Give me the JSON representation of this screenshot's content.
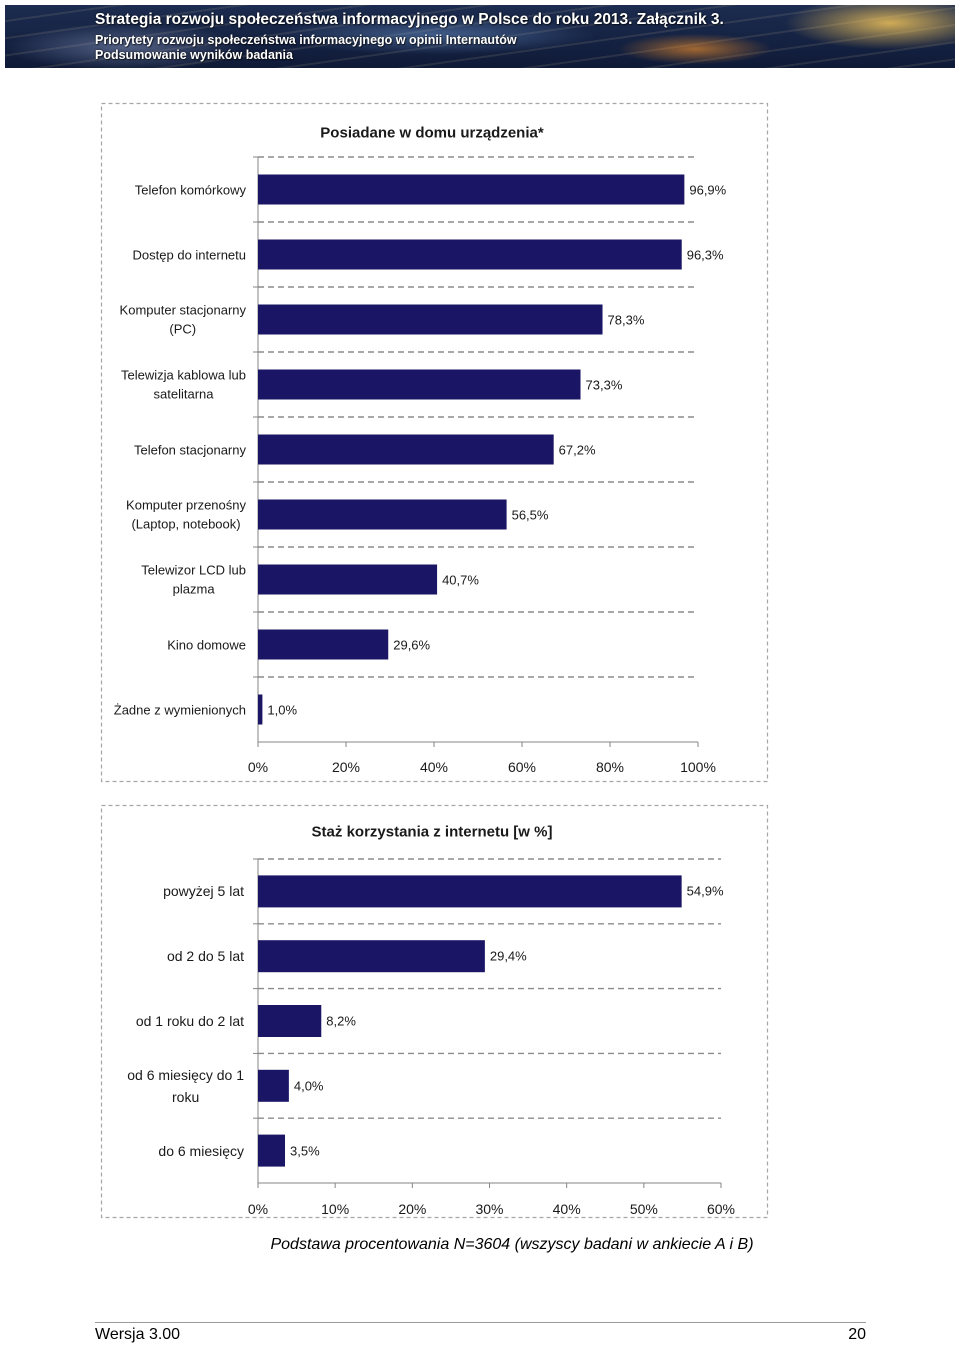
{
  "header": {
    "title": "Strategia rozwoju społeczeństwa informacyjnego w Polsce do roku 2013. Załącznik 3.",
    "subtitle": "Priorytety rozwoju społeczeństwa informacyjnego w opinii Internautów",
    "section": "Podsumowanie wyników badania"
  },
  "chart_data": [
    {
      "type": "bar",
      "orientation": "horizontal",
      "title": "Posiadane w domu urządzenia*",
      "categories": [
        "Telefon komórkowy",
        "Dostęp do internetu",
        "Komputer stacjonarny\n(PC)",
        "Telewizja kablowa lub\nsatelitarna",
        "Telefon stacjonarny",
        "Komputer przenośny\n(Laptop, notebook)",
        "Telewizor LCD lub\nplazma",
        "Kino domowe",
        "Żadne z wymienionych"
      ],
      "values": [
        96.9,
        96.3,
        78.3,
        73.3,
        67.2,
        56.5,
        40.7,
        29.6,
        1.0
      ],
      "value_labels": [
        "96,9%",
        "96,3%",
        "78,3%",
        "73,3%",
        "67,2%",
        "56,5%",
        "40,7%",
        "29,6%",
        "1,0%"
      ],
      "xlim": [
        0,
        100
      ],
      "xticks": [
        0,
        20,
        40,
        60,
        80,
        100
      ],
      "xtick_labels": [
        "0%",
        "20%",
        "40%",
        "60%",
        "80%",
        "100%"
      ],
      "grid": true,
      "bar_color": "#1b1565"
    },
    {
      "type": "bar",
      "orientation": "horizontal",
      "title": "Staż korzystania z internetu [w %]",
      "categories": [
        "powyżej 5 lat",
        "od 2 do 5 lat",
        "od 1 roku do 2 lat",
        "od 6 miesięcy do 1\nroku",
        "do 6 miesięcy"
      ],
      "values": [
        54.9,
        29.4,
        8.2,
        4.0,
        3.5
      ],
      "value_labels": [
        "54,9%",
        "29,4%",
        "8,2%",
        "4,0%",
        "3,5%"
      ],
      "xlim": [
        0,
        60
      ],
      "xticks": [
        0,
        10,
        20,
        30,
        40,
        50,
        60
      ],
      "xtick_labels": [
        "0%",
        "10%",
        "20%",
        "30%",
        "40%",
        "50%",
        "60%"
      ],
      "grid": true,
      "bar_color": "#1b1565"
    }
  ],
  "caption": "Podstawa procentowania N=3604 (wszyscy badani w ankiecie A i B)",
  "footer": {
    "version": "Wersja 3.00",
    "page_number": "20"
  }
}
